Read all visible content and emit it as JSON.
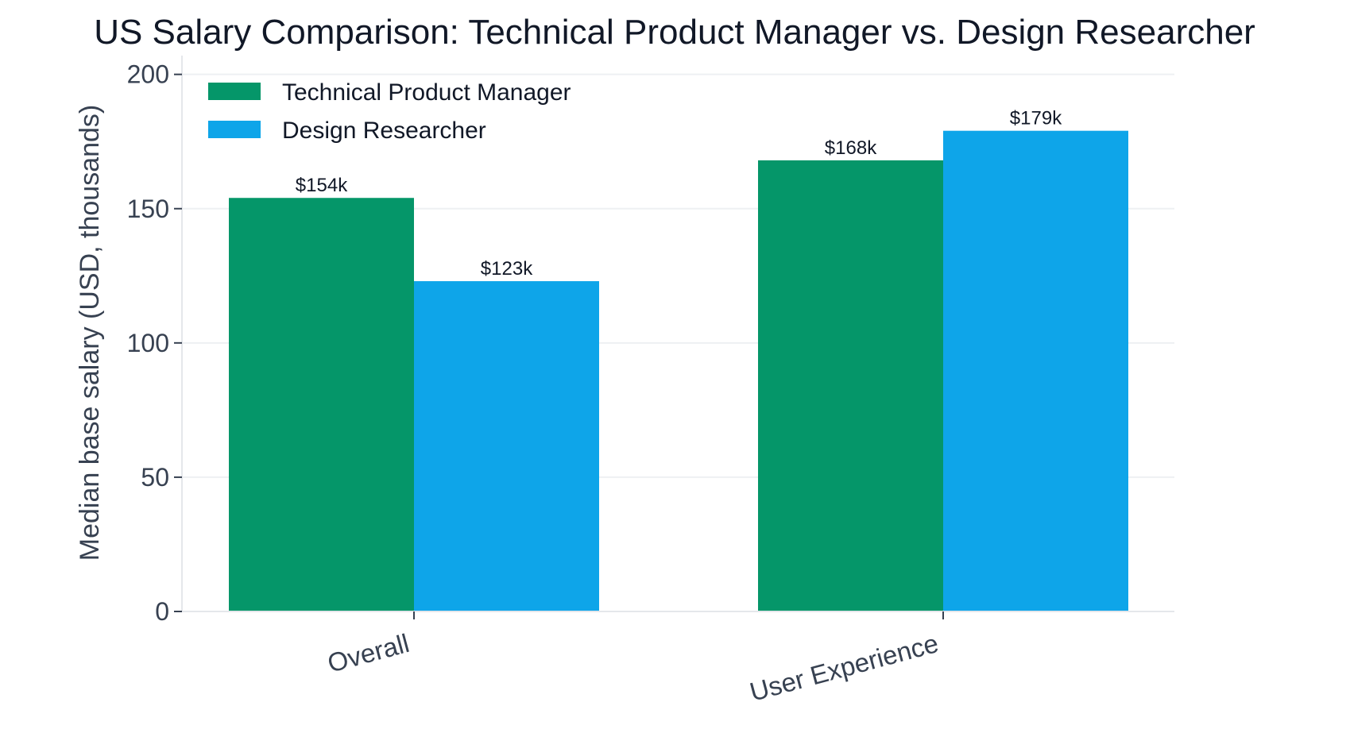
{
  "chart_data": {
    "type": "bar",
    "title": "US Salary Comparison: Technical Product Manager vs. Design Researcher",
    "xlabel": "",
    "ylabel": "Median base salary (USD, thousands)",
    "ylim": [
      0,
      207
    ],
    "yticks": [
      0,
      50,
      100,
      150,
      200
    ],
    "grid": "horizontal",
    "legend_position": "top-left",
    "categories": [
      "Overall",
      "User Experience"
    ],
    "series": [
      {
        "name": "Technical Product Manager",
        "color": "#059669",
        "values": [
          154,
          168
        ],
        "labels": [
          "$154k",
          "$168k"
        ]
      },
      {
        "name": "Design Researcher",
        "color": "#0ea5e9",
        "values": [
          123,
          179
        ],
        "labels": [
          "$123k",
          "$179k"
        ]
      }
    ]
  }
}
